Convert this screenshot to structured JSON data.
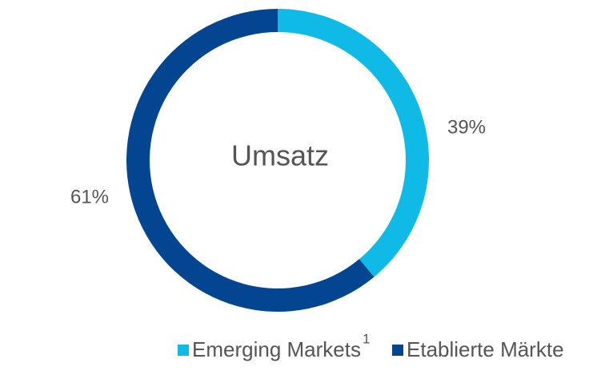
{
  "chart_data": {
    "type": "donut",
    "center_text": "Umsatz",
    "categories": [
      "Emerging Markets",
      "Etablierte Märkte"
    ],
    "category_notes": [
      "1",
      null
    ],
    "values": [
      39,
      61
    ],
    "value_labels": [
      "39%",
      "61%"
    ],
    "colors": [
      "#0fbbe6",
      "#034591"
    ]
  }
}
